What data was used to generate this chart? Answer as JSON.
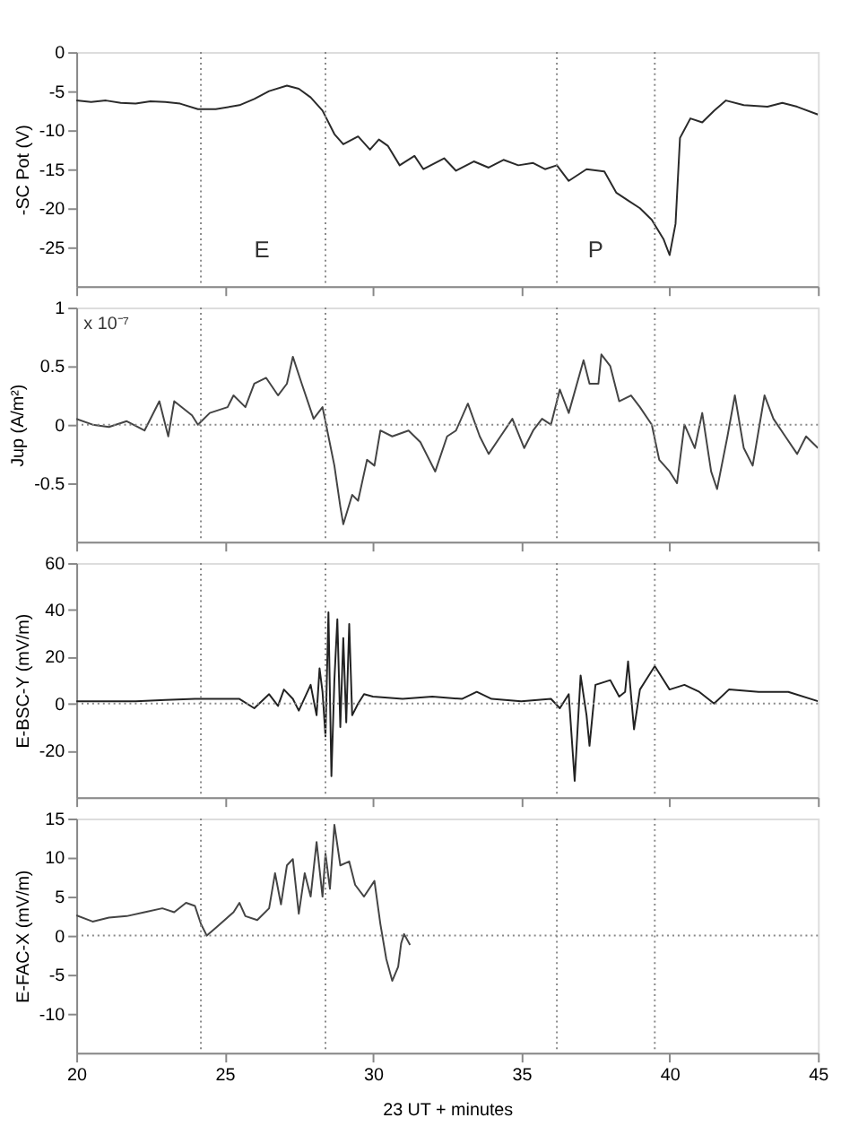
{
  "chart_data": [
    {
      "type": "line",
      "ylabel": "-SC Pot (V)",
      "xlim": [
        20,
        45
      ],
      "xticks": [
        20,
        25,
        30,
        35,
        40,
        45
      ],
      "ylim": [
        -30,
        0
      ],
      "yticks": [
        -25,
        -20,
        -15,
        -10,
        -5,
        0
      ],
      "tick_labels": "y",
      "grid": false,
      "x": [
        20,
        20.5,
        21,
        21.5,
        22,
        22.5,
        23,
        23.5,
        24.1,
        24.7,
        25.5,
        26,
        26.5,
        27.1,
        27.5,
        27.9,
        28.3,
        28.7,
        29,
        29.5,
        29.9,
        30.2,
        30.5,
        30.9,
        31.4,
        31.7,
        32.4,
        32.8,
        33.4,
        33.9,
        34.4,
        34.9,
        35.4,
        35.8,
        36.2,
        36.6,
        37.2,
        37.8,
        38.2,
        38.6,
        39,
        39.4,
        39.8,
        40,
        40.2,
        40.35,
        40.7,
        41.1,
        41.5,
        41.9,
        42.5,
        43.3,
        43.8,
        44.3,
        45
      ],
      "series": [
        {
          "color": "#2a2a2a",
          "values": [
            -6.2,
            -6.4,
            -6.2,
            -6.5,
            -6.6,
            -6.3,
            -6.4,
            -6.6,
            -7.3,
            -7.3,
            -6.8,
            -6.0,
            -5.0,
            -4.3,
            -4.7,
            -5.8,
            -7.5,
            -10.5,
            -11.8,
            -10.8,
            -12.5,
            -11.2,
            -12.0,
            -14.5,
            -13.3,
            -15.0,
            -13.6,
            -15.2,
            -14.0,
            -14.8,
            -13.8,
            -14.5,
            -14.2,
            -15.0,
            -14.5,
            -16.5,
            -15.0,
            -15.3,
            -18.0,
            -19.0,
            -20.0,
            -21.5,
            -24.0,
            -26.0,
            -22.0,
            -11.0,
            -8.5,
            -9.0,
            -7.5,
            -6.2,
            -6.8,
            -7.0,
            -6.5,
            -7.0,
            -8.0
          ]
        }
      ],
      "ref_lines": [
        {
          "axis": "x",
          "value": 24.2,
          "color": "#888888",
          "line_style": "dotted"
        },
        {
          "axis": "x",
          "value": 28.4,
          "color": "#888888",
          "line_style": "dotted"
        },
        {
          "axis": "x",
          "value": 36.2,
          "color": "#888888",
          "line_style": "dotted"
        },
        {
          "axis": "x",
          "value": 39.5,
          "color": "#888888",
          "line_style": "dotted"
        }
      ],
      "annotations": [
        "E",
        "P"
      ]
    },
    {
      "type": "line",
      "ylabel": "Jup (A/m²)",
      "xlim": [
        20,
        45
      ],
      "xticks": [
        20,
        25,
        30,
        35,
        40,
        45
      ],
      "ylim": [
        -1,
        1
      ],
      "yticks": [
        -0.5,
        0,
        0.5,
        1
      ],
      "tick_labels": "y",
      "grid": false,
      "x": [
        20,
        20.55,
        21.1,
        21.7,
        22.3,
        22.8,
        23.1,
        23.3,
        23.9,
        24.1,
        24.5,
        25.1,
        25.3,
        25.7,
        26.0,
        26.4,
        26.8,
        27.1,
        27.3,
        27.6,
        28.0,
        28.3,
        28.5,
        28.7,
        28.9,
        29.0,
        29.3,
        29.5,
        29.8,
        30.05,
        30.25,
        30.65,
        31.2,
        31.6,
        32.1,
        32.5,
        32.8,
        33.2,
        33.6,
        33.9,
        34.3,
        34.7,
        35.1,
        35.4,
        35.7,
        36.0,
        36.3,
        36.6,
        37.1,
        37.3,
        37.6,
        37.7,
        38.0,
        38.3,
        38.7,
        39.0,
        39.4,
        39.65,
        40.0,
        40.25,
        40.5,
        40.85,
        41.1,
        41.4,
        41.6,
        41.95,
        42.2,
        42.5,
        42.8,
        43.2,
        43.5,
        43.9,
        44.3,
        44.6,
        45
      ],
      "series": [
        {
          "color": "#444444",
          "values": [
            0.05,
            0.0,
            -0.02,
            0.03,
            -0.05,
            0.2,
            -0.1,
            0.2,
            0.08,
            0.0,
            0.1,
            0.15,
            0.25,
            0.15,
            0.35,
            0.4,
            0.25,
            0.35,
            0.58,
            0.35,
            0.05,
            0.15,
            -0.1,
            -0.35,
            -0.7,
            -0.85,
            -0.6,
            -0.65,
            -0.3,
            -0.35,
            -0.05,
            -0.1,
            -0.05,
            -0.15,
            -0.4,
            -0.1,
            -0.05,
            0.18,
            -0.1,
            -0.25,
            -0.1,
            0.05,
            -0.2,
            -0.05,
            0.05,
            0.0,
            0.3,
            0.1,
            0.55,
            0.35,
            0.35,
            0.6,
            0.5,
            0.2,
            0.25,
            0.15,
            0.0,
            -0.3,
            -0.4,
            -0.5,
            0.0,
            -0.2,
            0.1,
            -0.4,
            -0.55,
            -0.1,
            0.25,
            -0.2,
            -0.35,
            0.25,
            0.05,
            -0.1,
            -0.25,
            -0.1,
            -0.2
          ]
        }
      ],
      "ref_lines": [
        {
          "axis": "x",
          "value": 24.2,
          "color": "#888888",
          "line_style": "dotted"
        },
        {
          "axis": "x",
          "value": 28.4,
          "color": "#888888",
          "line_style": "dotted"
        },
        {
          "axis": "x",
          "value": 36.2,
          "color": "#888888",
          "line_style": "dotted"
        },
        {
          "axis": "x",
          "value": 39.5,
          "color": "#888888",
          "line_style": "dotted"
        },
        {
          "axis": "y",
          "value": 0,
          "color": "#888888",
          "line_style": "dotted"
        }
      ],
      "annotations": [
        "x 10⁻⁷"
      ]
    },
    {
      "type": "line",
      "ylabel": "E-BSC-Y (mV/m)",
      "xlim": [
        20,
        45
      ],
      "xticks": [
        20,
        25,
        30,
        35,
        40,
        45
      ],
      "ylim": [
        -40,
        60
      ],
      "yticks": [
        -20,
        0,
        20,
        40,
        60
      ],
      "tick_labels": "y",
      "grid": false,
      "x": [
        20,
        21,
        22,
        23,
        24,
        25,
        25.5,
        26,
        26.5,
        26.8,
        27,
        27.3,
        27.5,
        27.9,
        28.1,
        28.2,
        28.3,
        28.4,
        28.5,
        28.6,
        28.7,
        28.8,
        28.9,
        29.0,
        29.1,
        29.2,
        29.3,
        29.5,
        29.7,
        30,
        31,
        32,
        33,
        33.5,
        34,
        35,
        36,
        36.3,
        36.6,
        36.8,
        37,
        37.2,
        37.3,
        37.5,
        38,
        38.3,
        38.5,
        38.6,
        38.8,
        39,
        39.5,
        40,
        40.5,
        41,
        41.5,
        42,
        43,
        44,
        45
      ],
      "series": [
        {
          "color": "#222222",
          "values": [
            1,
            1,
            1,
            1.5,
            2,
            2,
            2,
            -2,
            4,
            -1,
            6,
            2,
            -3,
            8,
            -5,
            15,
            5,
            -14,
            39,
            -31,
            10,
            36,
            -10,
            28,
            -8,
            34,
            -5,
            0,
            4,
            3,
            2,
            3,
            2,
            5,
            2,
            1,
            2,
            -2,
            4,
            -33,
            12,
            -5,
            -18,
            8,
            10,
            3,
            5,
            18,
            -11,
            6,
            16,
            6,
            8,
            5,
            0,
            6,
            5,
            5,
            1
          ]
        }
      ],
      "ref_lines": [
        {
          "axis": "x",
          "value": 24.2,
          "color": "#888888",
          "line_style": "dotted"
        },
        {
          "axis": "x",
          "value": 28.4,
          "color": "#888888",
          "line_style": "dotted"
        },
        {
          "axis": "x",
          "value": 36.2,
          "color": "#888888",
          "line_style": "dotted"
        },
        {
          "axis": "x",
          "value": 39.5,
          "color": "#888888",
          "line_style": "dotted"
        },
        {
          "axis": "y",
          "value": 0,
          "color": "#888888",
          "line_style": "dotted"
        }
      ]
    },
    {
      "type": "line",
      "ylabel": "E-FAC-X (mV/m)",
      "xlabel": "23  UT + minutes",
      "xlim": [
        20,
        45
      ],
      "xticks": [
        20,
        25,
        30,
        35,
        40,
        45
      ],
      "ylim": [
        -15,
        15
      ],
      "yticks": [
        -10,
        -5,
        0,
        5,
        10,
        15
      ],
      "grid": false,
      "x": [
        20,
        20.55,
        21.1,
        21.7,
        22.3,
        22.9,
        23.3,
        23.5,
        23.7,
        24.0,
        24.2,
        24.4,
        24.7,
        25.0,
        25.3,
        25.5,
        25.7,
        26.1,
        26.5,
        26.7,
        26.9,
        27.1,
        27.3,
        27.5,
        27.7,
        27.9,
        28.1,
        28.3,
        28.4,
        28.55,
        28.7,
        28.9,
        29.2,
        29.4,
        29.7,
        30.05,
        30.25,
        30.45,
        30.65,
        30.85,
        30.95,
        31.05,
        31.25
      ],
      "series": [
        {
          "color": "#444444",
          "values": [
            2.6,
            1.8,
            2.3,
            2.5,
            3.0,
            3.5,
            3.0,
            3.6,
            4.2,
            3.8,
            1.5,
            0.0,
            1.0,
            2.0,
            3.0,
            4.2,
            2.5,
            2.0,
            3.5,
            8.0,
            4.0,
            9.0,
            9.8,
            2.8,
            8.0,
            5.0,
            12.0,
            5.0,
            10.5,
            6.0,
            14.2,
            9.0,
            9.5,
            6.5,
            5.0,
            7.0,
            1.5,
            -3.0,
            -5.8,
            -4.0,
            -1.0,
            0.2,
            -1.2
          ]
        }
      ],
      "ref_lines": [
        {
          "axis": "x",
          "value": 24.2,
          "color": "#888888",
          "line_style": "dotted"
        },
        {
          "axis": "x",
          "value": 28.4,
          "color": "#888888",
          "line_style": "dotted"
        },
        {
          "axis": "x",
          "value": 36.2,
          "color": "#888888",
          "line_style": "dotted"
        },
        {
          "axis": "x",
          "value": 39.5,
          "color": "#888888",
          "line_style": "dotted"
        },
        {
          "axis": "y",
          "value": 0,
          "color": "#888888",
          "line_style": "dotted"
        }
      ]
    }
  ]
}
